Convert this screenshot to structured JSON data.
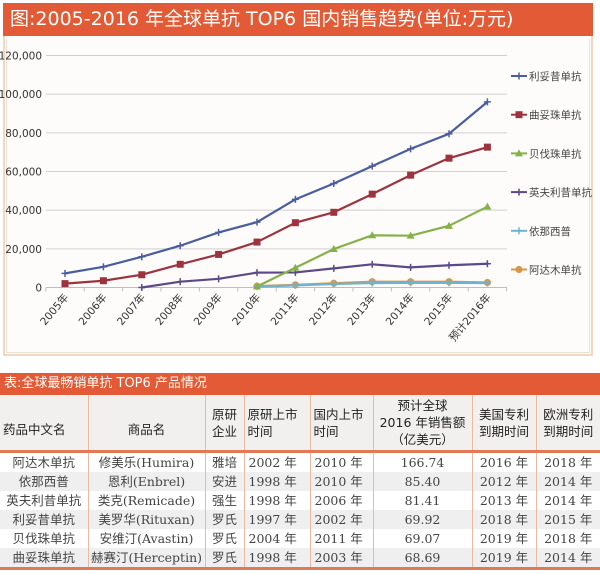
{
  "header": {
    "chart_title": "图:2005-2016 年全球单抗 TOP6 国内销售趋势(单位:万元)"
  },
  "chart_data": {
    "type": "line",
    "title": "图:2005-2016 年全球单抗 TOP6 国内销售趋势(单位:万元)",
    "xlabel": "",
    "ylabel": "",
    "unit": "万元",
    "ylim": [
      0,
      120000
    ],
    "yticks": [
      0,
      20000,
      40000,
      60000,
      80000,
      100000,
      120000
    ],
    "ytick_labels": [
      "0",
      "20,000",
      "40,000",
      "60,000",
      "80,000",
      "100,000",
      "120,000"
    ],
    "grid": true,
    "legend_position": "right",
    "categories": [
      "2005年",
      "2006年",
      "2007年",
      "2008年",
      "2009年",
      "2010年",
      "2011年",
      "2012年",
      "2013年",
      "2014年",
      "2015年",
      "预计2016年"
    ],
    "series": [
      {
        "name": "利妥昔单抗",
        "color": "#4a5d9c",
        "marker": "cross",
        "values": [
          7300,
          10700,
          15900,
          21600,
          28500,
          33800,
          45600,
          53800,
          62800,
          71700,
          79500,
          96000
        ]
      },
      {
        "name": "曲妥珠单抗",
        "color": "#9c3440",
        "marker": "square",
        "values": [
          2000,
          3500,
          6600,
          12000,
          17100,
          23500,
          33500,
          38900,
          48300,
          58100,
          66900,
          72600
        ]
      },
      {
        "name": "贝伐珠单抗",
        "color": "#86b04a",
        "marker": "triangle",
        "values": [
          null,
          null,
          null,
          null,
          null,
          500,
          10200,
          19900,
          27000,
          26800,
          31900,
          41800
        ]
      },
      {
        "name": "英夫利昔单抗",
        "color": "#5b4a85",
        "marker": "cross",
        "values": [
          null,
          null,
          0,
          3000,
          4500,
          7700,
          7800,
          9900,
          12000,
          10400,
          11500,
          12300
        ]
      },
      {
        "name": "依那西普",
        "color": "#6fb3d2",
        "marker": "cross",
        "values": [
          null,
          null,
          null,
          null,
          null,
          400,
          1100,
          1800,
          2300,
          2400,
          2400,
          2300
        ]
      },
      {
        "name": "阿达木单抗",
        "color": "#d9954a",
        "marker": "circle",
        "values": [
          null,
          null,
          null,
          null,
          null,
          700,
          1400,
          2200,
          3000,
          3000,
          3000,
          2600
        ]
      }
    ]
  },
  "table": {
    "title": "表:全球最畅销单抗 TOP6 产品情况",
    "columns": [
      {
        "line1": "药品中文名",
        "line2": "",
        "line3": ""
      },
      {
        "line1": "商品名",
        "line2": "",
        "line3": ""
      },
      {
        "line1": "原研",
        "line2": "企业",
        "line3": ""
      },
      {
        "line1": "原研上市",
        "line2": "时间",
        "line3": ""
      },
      {
        "line1": "国内上市",
        "line2": "时间",
        "line3": ""
      },
      {
        "line1": "预计全球",
        "line2": "2016 年销售额",
        "line3": "（亿美元）"
      },
      {
        "line1": "美国专利",
        "line2": "到期时间",
        "line3": ""
      },
      {
        "line1": "欧洲专利",
        "line2": "到期时间",
        "line3": ""
      }
    ],
    "rows": [
      [
        "阿达木单抗",
        "修美乐(Humira)",
        "雅培",
        "2002 年",
        "2010 年",
        "166.74",
        "2016 年",
        "2018 年"
      ],
      [
        "依那西普",
        "恩利(Enbrel)",
        "安进",
        "1998 年",
        "2010 年",
        "85.40",
        "2012 年",
        "2014 年"
      ],
      [
        "英夫利昔单抗",
        "类克(Remicade)",
        "强生",
        "1998 年",
        "2006 年",
        "81.41",
        "2013 年",
        "2014 年"
      ],
      [
        "利妥昔单抗",
        "美罗华(Rituxan)",
        "罗氏",
        "1997 年",
        "2002 年",
        "69.92",
        "2018 年",
        "2015 年"
      ],
      [
        "贝伐珠单抗",
        "安维汀(Avastin)",
        "罗氏",
        "2004 年",
        "2011 年",
        "69.07",
        "2019 年",
        "2018 年"
      ],
      [
        "曲妥珠单抗",
        "赫赛汀(Herceptin)",
        "罗氏",
        "1998 年",
        "2003 年",
        "68.69",
        "2019 年",
        "2014 年"
      ]
    ]
  },
  "colors": {
    "accent": "#e35b36",
    "table_rule": "#e07a55"
  }
}
